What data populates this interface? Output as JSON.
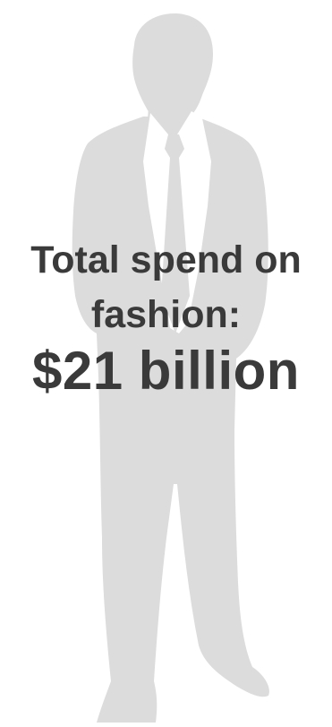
{
  "infographic": {
    "label_line1": "Total spend on",
    "label_line2": "fashion:",
    "amount": "$21 billion"
  },
  "colors": {
    "silhouette": "#dcdcdc",
    "shirt": "#ffffff",
    "text": "#3a3a3a"
  },
  "icons": [
    "man-in-suit-silhouette-icon"
  ]
}
